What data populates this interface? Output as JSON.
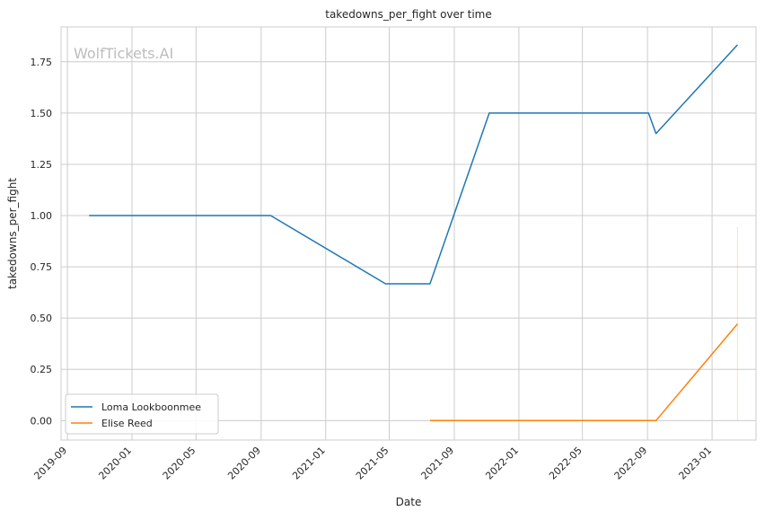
{
  "chart_data": {
    "type": "line",
    "title": "takedowns_per_fight over time",
    "xlabel": "Date",
    "ylabel": "takedowns_per_fight",
    "watermark": "WolfTickets.AI",
    "grid": true,
    "legend_position": "lower-left",
    "x_type": "date",
    "xlim": [
      "2019-08-20",
      "2023-03-25"
    ],
    "ylim": [
      -0.095,
      1.92
    ],
    "x_ticks": [
      "2019-09-01",
      "2020-01-01",
      "2020-05-01",
      "2020-09-01",
      "2021-01-01",
      "2021-05-01",
      "2021-09-01",
      "2022-01-01",
      "2022-05-01",
      "2022-09-01",
      "2023-01-01"
    ],
    "x_tick_labels": [
      "2019-09",
      "2020-01",
      "2020-05",
      "2020-09",
      "2021-01",
      "2021-05",
      "2021-09",
      "2022-01",
      "2022-05",
      "2022-09",
      "2023-01"
    ],
    "y_ticks": [
      0.0,
      0.25,
      0.5,
      0.75,
      1.0,
      1.25,
      1.5,
      1.75
    ],
    "y_tick_labels": [
      "0.00",
      "0.25",
      "0.50",
      "0.75",
      "1.00",
      "1.25",
      "1.50",
      "1.75"
    ],
    "series": [
      {
        "name": "Loma Lookboonmee",
        "color": "#1f77b4",
        "x": [
          "2019-10-12",
          "2020-09-19",
          "2021-04-24",
          "2021-07-17",
          "2021-11-06",
          "2022-09-03",
          "2022-09-17",
          "2023-02-18"
        ],
        "y": [
          1.0,
          1.0,
          0.667,
          0.667,
          1.5,
          1.5,
          1.4,
          1.833
        ]
      },
      {
        "name": "Elise Reed",
        "color": "#ff7f0e",
        "x": [
          "2021-07-17",
          "2022-09-17",
          "2023-02-18"
        ],
        "y": [
          0.0,
          0.0,
          0.472
        ]
      }
    ],
    "annotations": [
      {
        "type": "faint-vertical-line",
        "color": "#ff7f0e",
        "x": "2023-02-18",
        "y_range": [
          0.0,
          0.944
        ]
      }
    ]
  }
}
